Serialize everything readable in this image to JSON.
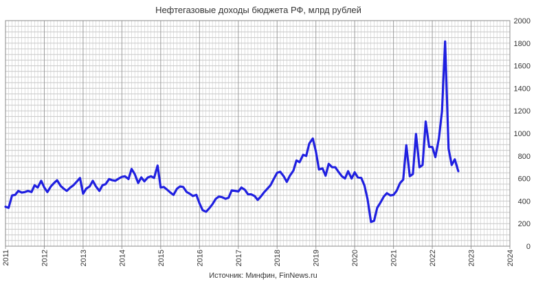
{
  "chart_data": {
    "type": "line",
    "title": "Нефтегазовые доходы бюджета РФ, млрд рублей",
    "source": "Источник: Минфин, FinNews.ru",
    "xlabel": "",
    "ylabel": "",
    "x_ticks": [
      "2011",
      "2012",
      "2013",
      "2014",
      "2015",
      "2016",
      "2017",
      "2018",
      "2019",
      "2020",
      "2021",
      "2022",
      "2023",
      "2024"
    ],
    "y_ticks": [
      "0",
      "200",
      "400",
      "600",
      "800",
      "1000",
      "1200",
      "1400",
      "1600",
      "1800",
      "2000"
    ],
    "xlim": [
      2011,
      2024
    ],
    "ylim": [
      0,
      2000
    ],
    "grid": true,
    "legend": "none",
    "colors": {
      "line": "#1f1fe0",
      "grid": "#c8c8c8",
      "axis": "#888888"
    },
    "series": [
      {
        "points": [
          [
            2011.0,
            350
          ],
          [
            2011.08,
            340
          ],
          [
            2011.17,
            450
          ],
          [
            2011.25,
            455
          ],
          [
            2011.33,
            490
          ],
          [
            2011.42,
            475
          ],
          [
            2011.5,
            480
          ],
          [
            2011.58,
            490
          ],
          [
            2011.67,
            480
          ],
          [
            2011.75,
            540
          ],
          [
            2011.83,
            520
          ],
          [
            2011.92,
            580
          ],
          [
            2012.0,
            520
          ],
          [
            2012.08,
            480
          ],
          [
            2012.17,
            530
          ],
          [
            2012.25,
            560
          ],
          [
            2012.33,
            585
          ],
          [
            2012.42,
            535
          ],
          [
            2012.5,
            510
          ],
          [
            2012.58,
            490
          ],
          [
            2012.67,
            520
          ],
          [
            2012.75,
            540
          ],
          [
            2012.83,
            570
          ],
          [
            2012.92,
            605
          ],
          [
            2013.0,
            465
          ],
          [
            2013.08,
            510
          ],
          [
            2013.17,
            530
          ],
          [
            2013.25,
            580
          ],
          [
            2013.33,
            530
          ],
          [
            2013.42,
            490
          ],
          [
            2013.5,
            540
          ],
          [
            2013.58,
            550
          ],
          [
            2013.67,
            595
          ],
          [
            2013.75,
            585
          ],
          [
            2013.83,
            580
          ],
          [
            2013.92,
            600
          ],
          [
            2014.0,
            615
          ],
          [
            2014.08,
            620
          ],
          [
            2014.17,
            595
          ],
          [
            2014.25,
            685
          ],
          [
            2014.33,
            640
          ],
          [
            2014.42,
            560
          ],
          [
            2014.5,
            610
          ],
          [
            2014.58,
            575
          ],
          [
            2014.67,
            610
          ],
          [
            2014.75,
            620
          ],
          [
            2014.83,
            605
          ],
          [
            2014.92,
            715
          ],
          [
            2015.0,
            520
          ],
          [
            2015.08,
            525
          ],
          [
            2015.17,
            500
          ],
          [
            2015.25,
            475
          ],
          [
            2015.33,
            455
          ],
          [
            2015.42,
            510
          ],
          [
            2015.5,
            530
          ],
          [
            2015.58,
            525
          ],
          [
            2015.67,
            480
          ],
          [
            2015.75,
            465
          ],
          [
            2015.83,
            445
          ],
          [
            2015.92,
            455
          ],
          [
            2016.0,
            380
          ],
          [
            2016.08,
            320
          ],
          [
            2016.17,
            305
          ],
          [
            2016.25,
            335
          ],
          [
            2016.33,
            370
          ],
          [
            2016.42,
            420
          ],
          [
            2016.5,
            440
          ],
          [
            2016.58,
            435
          ],
          [
            2016.67,
            420
          ],
          [
            2016.75,
            430
          ],
          [
            2016.83,
            495
          ],
          [
            2016.92,
            490
          ],
          [
            2017.0,
            485
          ],
          [
            2017.08,
            520
          ],
          [
            2017.17,
            500
          ],
          [
            2017.25,
            460
          ],
          [
            2017.33,
            460
          ],
          [
            2017.42,
            445
          ],
          [
            2017.5,
            410
          ],
          [
            2017.58,
            440
          ],
          [
            2017.67,
            480
          ],
          [
            2017.75,
            510
          ],
          [
            2017.83,
            540
          ],
          [
            2017.92,
            600
          ],
          [
            2018.0,
            650
          ],
          [
            2018.08,
            660
          ],
          [
            2018.17,
            620
          ],
          [
            2018.25,
            570
          ],
          [
            2018.33,
            625
          ],
          [
            2018.42,
            670
          ],
          [
            2018.5,
            760
          ],
          [
            2018.58,
            745
          ],
          [
            2018.67,
            810
          ],
          [
            2018.75,
            800
          ],
          [
            2018.83,
            910
          ],
          [
            2018.92,
            955
          ],
          [
            2019.0,
            840
          ],
          [
            2019.08,
            680
          ],
          [
            2019.17,
            690
          ],
          [
            2019.25,
            625
          ],
          [
            2019.33,
            730
          ],
          [
            2019.42,
            700
          ],
          [
            2019.5,
            700
          ],
          [
            2019.58,
            660
          ],
          [
            2019.67,
            620
          ],
          [
            2019.75,
            600
          ],
          [
            2019.83,
            665
          ],
          [
            2019.92,
            600
          ],
          [
            2020.0,
            655
          ],
          [
            2020.08,
            610
          ],
          [
            2020.17,
            605
          ],
          [
            2020.25,
            540
          ],
          [
            2020.33,
            420
          ],
          [
            2020.42,
            215
          ],
          [
            2020.5,
            225
          ],
          [
            2020.58,
            340
          ],
          [
            2020.67,
            390
          ],
          [
            2020.75,
            440
          ],
          [
            2020.83,
            470
          ],
          [
            2020.92,
            450
          ],
          [
            2021.0,
            455
          ],
          [
            2021.08,
            490
          ],
          [
            2021.17,
            560
          ],
          [
            2021.25,
            590
          ],
          [
            2021.33,
            895
          ],
          [
            2021.42,
            620
          ],
          [
            2021.5,
            640
          ],
          [
            2021.58,
            995
          ],
          [
            2021.67,
            700
          ],
          [
            2021.75,
            720
          ],
          [
            2021.83,
            1105
          ],
          [
            2021.92,
            880
          ],
          [
            2022.0,
            880
          ],
          [
            2022.08,
            790
          ],
          [
            2022.17,
            955
          ],
          [
            2022.25,
            1195
          ],
          [
            2022.33,
            1815
          ],
          [
            2022.42,
            865
          ],
          [
            2022.5,
            720
          ],
          [
            2022.58,
            770
          ],
          [
            2022.67,
            665
          ]
        ]
      }
    ]
  }
}
